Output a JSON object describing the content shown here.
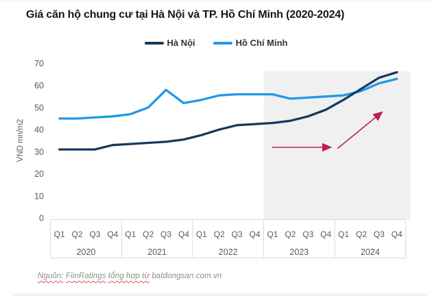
{
  "page": {
    "title": "Giá căn hộ chung cư tại Hà Nội và TP. Hồ Chí Minh (2020-2024)",
    "source": {
      "prefix": "Nguồn:",
      "org": "FiinRatings",
      "middle": "tổng hợp từ",
      "site": "batdongsan.com.vn"
    }
  },
  "chart_data": {
    "type": "line",
    "title": "Giá căn hộ chung cư tại Hà Nội và TP. Hồ Chí Minh (2020-2024)",
    "xlabel": "",
    "ylabel": "VND mn/m2",
    "ylim": [
      0,
      70
    ],
    "yticks": [
      0,
      10,
      20,
      30,
      40,
      50,
      60,
      70
    ],
    "grid": false,
    "legend_position": "top-center",
    "years": [
      "2020",
      "2021",
      "2022",
      "2023",
      "2024"
    ],
    "quarters": [
      "Q1",
      "Q2",
      "Q3",
      "Q4"
    ],
    "series": [
      {
        "name": "Hà Nội",
        "color": "#16395C",
        "values": [
          31,
          31,
          31,
          33,
          33.5,
          34,
          34.5,
          35.5,
          37.5,
          40,
          42,
          42.5,
          43,
          44,
          46,
          49,
          53.5,
          58.5,
          63.5,
          66
        ]
      },
      {
        "name": "Hồ Chí Minh",
        "color": "#2297E9",
        "values": [
          45,
          45,
          45.5,
          46,
          47,
          50,
          58,
          52,
          53.5,
          55.5,
          56,
          56,
          56,
          54,
          54.5,
          55,
          55.5,
          57.5,
          61,
          63
        ]
      }
    ],
    "highlight_region": {
      "from": "2023 Q1",
      "to": "2024 Q4",
      "color": "#F0F0F0"
    },
    "annotation": {
      "type": "trend-arrows",
      "color": "#BE1E4E"
    },
    "axis_color": "#D9D9D9",
    "tick_color": "#595959"
  }
}
